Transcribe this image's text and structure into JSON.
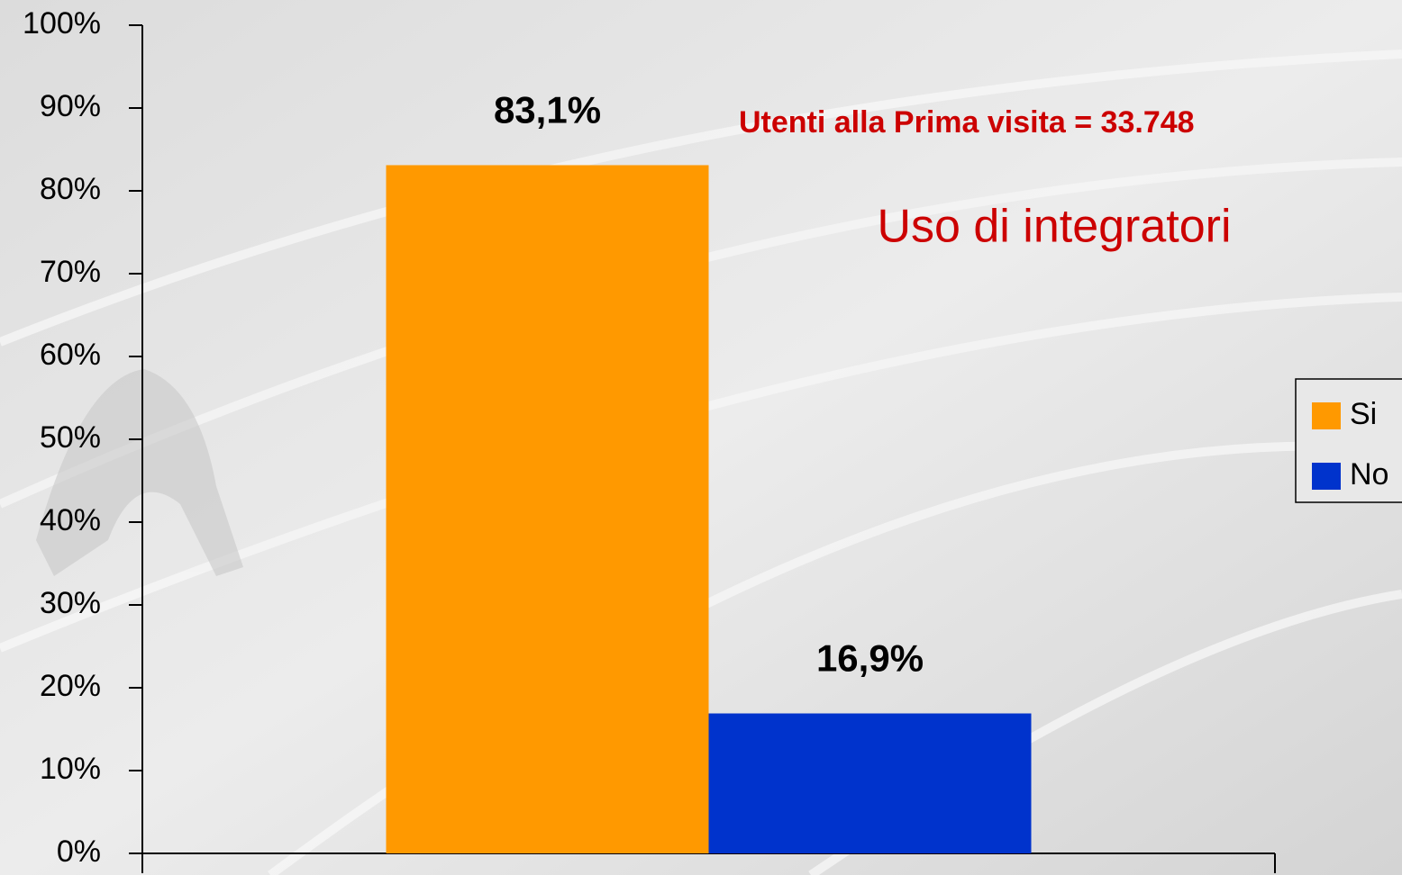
{
  "chart_data": {
    "type": "bar",
    "title": "Uso di integratori",
    "subtitle": "Utenti alla Prima visita = 33.748",
    "categories": [
      null
    ],
    "series": [
      {
        "name": "Si",
        "color": "#ff9900",
        "values": [
          83.1
        ],
        "value_labels": [
          "83,1%"
        ]
      },
      {
        "name": "No",
        "color": "#0033cc",
        "values": [
          16.9
        ],
        "value_labels": [
          "16,9%"
        ]
      }
    ],
    "ylim": [
      0,
      100
    ],
    "yticks": [
      {
        "value": 0,
        "label": "0%"
      },
      {
        "value": 10,
        "label": "10%"
      },
      {
        "value": 20,
        "label": "20%"
      },
      {
        "value": 30,
        "label": "30%"
      },
      {
        "value": 40,
        "label": "40%"
      },
      {
        "value": 50,
        "label": "50%"
      },
      {
        "value": 60,
        "label": "60%"
      },
      {
        "value": 70,
        "label": "70%"
      },
      {
        "value": 80,
        "label": "80%"
      },
      {
        "value": 90,
        "label": "90%"
      },
      {
        "value": 100,
        "label": "100%"
      }
    ],
    "grid": false,
    "legend": "right"
  }
}
